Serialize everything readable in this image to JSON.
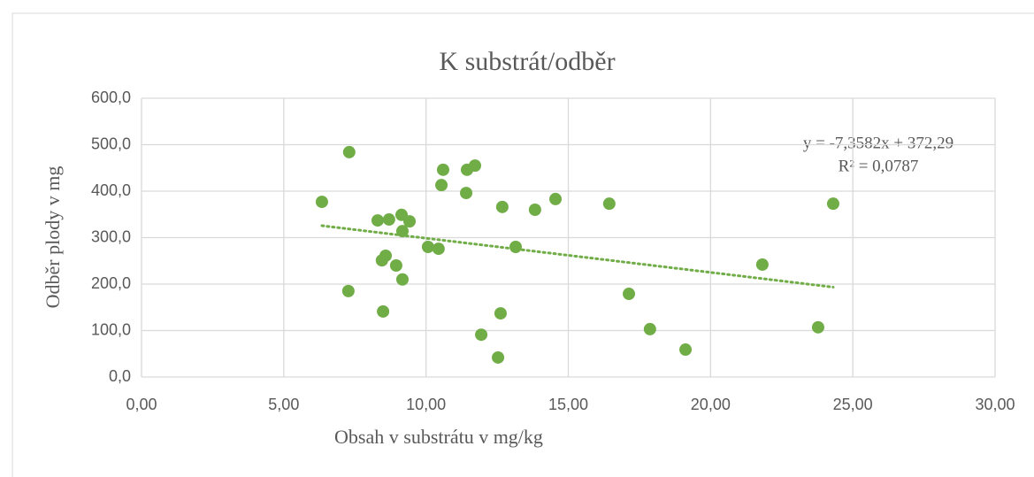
{
  "chart_data": {
    "type": "scatter",
    "title": "K substrát/odběr",
    "xlabel": "Obsah v substrátu v mg/kg",
    "ylabel": "Odběr plody v mg",
    "series": [
      {
        "name": "K",
        "color": "#70ad47",
        "x": [
          6.34,
          7.3,
          7.27,
          8.3,
          8.7,
          9.14,
          9.42,
          9.17,
          8.58,
          8.45,
          8.95,
          9.17,
          8.49,
          10.07,
          10.44,
          10.6,
          10.54,
          11.44,
          11.72,
          11.41,
          12.68,
          13.15,
          13.83,
          14.55,
          16.44,
          17.13,
          17.87,
          19.12,
          21.82,
          23.78,
          24.31,
          12.62,
          11.94,
          12.53
        ],
        "values": [
          377,
          484,
          185,
          337,
          339,
          349,
          335,
          314,
          261,
          251,
          240,
          210,
          141,
          280,
          276,
          446,
          413,
          446,
          455,
          396,
          366,
          280,
          360,
          383,
          373,
          179,
          103,
          59,
          242,
          107,
          373,
          137,
          91,
          42
        ]
      }
    ],
    "trendline": {
      "slope": -7.3582,
      "intercept": 372.29,
      "equation": "y = -7,3582x + 372,29",
      "r2": "R² = 0,0787"
    },
    "xlim": [
      0,
      30
    ],
    "xticks": [
      {
        "value": 0,
        "label": "0,00"
      },
      {
        "value": 5,
        "label": "5,00"
      },
      {
        "value": 10,
        "label": "10,00"
      },
      {
        "value": 15,
        "label": "15,00"
      },
      {
        "value": 20,
        "label": "20,00"
      },
      {
        "value": 25,
        "label": "25,00"
      },
      {
        "value": 30,
        "label": "30,00"
      }
    ],
    "ylim": [
      0,
      600
    ],
    "yticks": [
      {
        "value": 0,
        "label": "0,0"
      },
      {
        "value": 100,
        "label": "100,0"
      },
      {
        "value": 200,
        "label": "200,0"
      },
      {
        "value": 300,
        "label": "300,0"
      },
      {
        "value": 400,
        "label": "400,0"
      },
      {
        "value": 500,
        "label": "500,0"
      },
      {
        "value": 600,
        "label": "600,0"
      }
    ],
    "grid": true
  }
}
